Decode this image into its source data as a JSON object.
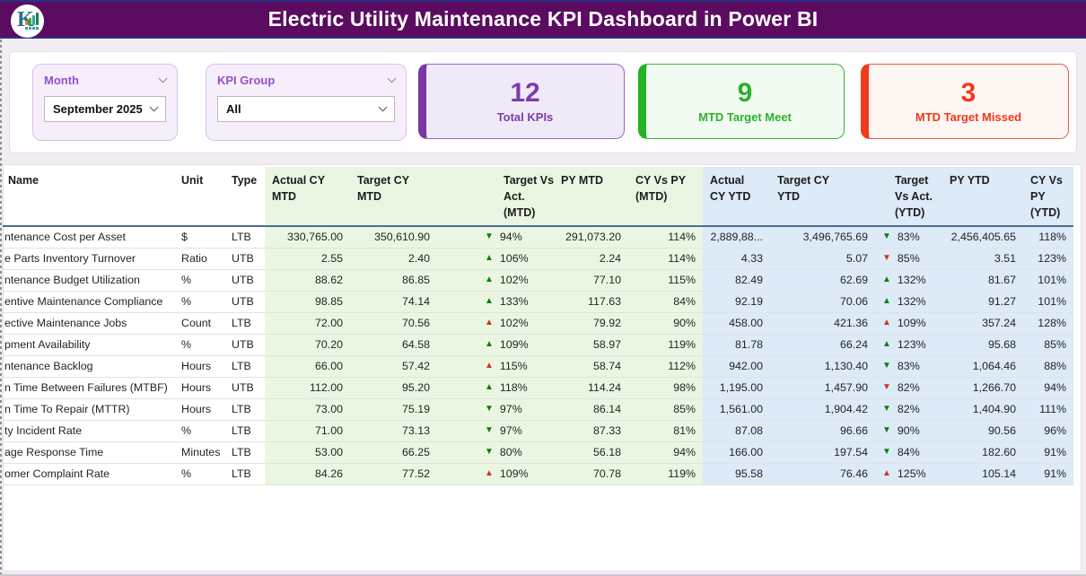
{
  "banner": {
    "title": "Electric Utility Maintenance KPI Dashboard in Power BI",
    "logo_text": "K"
  },
  "filters": {
    "month": {
      "label": "Month",
      "value": "September 2025"
    },
    "kpi_group": {
      "label": "KPI Group",
      "value": "All"
    }
  },
  "cards": {
    "total": {
      "value": "12",
      "label": "Total KPIs"
    },
    "meet": {
      "value": "9",
      "label": "MTD Target Meet"
    },
    "missed": {
      "value": "3",
      "label": "MTD Target Missed"
    }
  },
  "colors": {
    "banner": "#5B0C61",
    "card_purple": "#7B3CAA",
    "card_green": "#2BB22B",
    "card_red": "#F0391C",
    "band_green": "#EBF6E2",
    "band_blue": "#DDEAF8",
    "delta_good": "#0A7F0A",
    "delta_bad": "#C93620"
  },
  "table": {
    "icons": {
      "up_triangle": "▲",
      "down_triangle": "▼"
    },
    "columns": {
      "name": "Name",
      "unit": "Unit",
      "type": "Type",
      "actual_cy_mtd": "Actual CY\nMTD",
      "target_cy_mtd": "Target CY\nMTD",
      "tva_mtd": "Target Vs\nAct.\n(MTD)",
      "py_mtd": "PY MTD",
      "cy_vs_py_mtd": "CY Vs PY\n(MTD)",
      "actual_cy_ytd": "Actual\nCY YTD",
      "target_cy_ytd": "Target CY\nYTD",
      "tva_ytd": "Target\nVs Act.\n(YTD)",
      "py_ytd": "PY YTD",
      "cy_vs_py_ytd": "CY Vs\nPY\n(YTD)"
    },
    "rows": [
      {
        "name": "ntenance Cost per Asset",
        "unit": "$",
        "type": "LTB",
        "actual_cy_mtd": "330,765.00",
        "target_cy_mtd": "350,610.90",
        "tva_mtd_dir": "down",
        "tva_mtd_good": true,
        "tva_mtd_pct": "94%",
        "py_mtd": "291,073.20",
        "cy_vs_py_mtd": "114%",
        "actual_cy_ytd": "2,889,88...",
        "target_cy_ytd": "3,496,765.69",
        "tva_ytd_dir": "down",
        "tva_ytd_good": true,
        "tva_ytd_pct": "83%",
        "py_ytd": "2,456,405.65",
        "cy_vs_py_ytd": "118%"
      },
      {
        "name": "e Parts Inventory Turnover",
        "unit": "Ratio",
        "type": "UTB",
        "actual_cy_mtd": "2.55",
        "target_cy_mtd": "2.40",
        "tva_mtd_dir": "up",
        "tva_mtd_good": true,
        "tva_mtd_pct": "106%",
        "py_mtd": "2.24",
        "cy_vs_py_mtd": "114%",
        "actual_cy_ytd": "4.33",
        "target_cy_ytd": "5.07",
        "tva_ytd_dir": "down",
        "tva_ytd_good": false,
        "tva_ytd_pct": "85%",
        "py_ytd": "3.51",
        "cy_vs_py_ytd": "123%"
      },
      {
        "name": "ntenance Budget Utilization",
        "unit": "%",
        "type": "UTB",
        "actual_cy_mtd": "88.62",
        "target_cy_mtd": "86.85",
        "tva_mtd_dir": "up",
        "tva_mtd_good": true,
        "tva_mtd_pct": "102%",
        "py_mtd": "77.10",
        "cy_vs_py_mtd": "115%",
        "actual_cy_ytd": "82.49",
        "target_cy_ytd": "62.69",
        "tva_ytd_dir": "up",
        "tva_ytd_good": true,
        "tva_ytd_pct": "132%",
        "py_ytd": "81.67",
        "cy_vs_py_ytd": "101%"
      },
      {
        "name": "entive Maintenance Compliance",
        "unit": "%",
        "type": "UTB",
        "actual_cy_mtd": "98.85",
        "target_cy_mtd": "74.14",
        "tva_mtd_dir": "up",
        "tva_mtd_good": true,
        "tva_mtd_pct": "133%",
        "py_mtd": "117.63",
        "cy_vs_py_mtd": "84%",
        "actual_cy_ytd": "92.19",
        "target_cy_ytd": "70.06",
        "tva_ytd_dir": "up",
        "tva_ytd_good": true,
        "tva_ytd_pct": "132%",
        "py_ytd": "91.27",
        "cy_vs_py_ytd": "101%"
      },
      {
        "name": "ective Maintenance Jobs",
        "unit": "Count",
        "type": "LTB",
        "actual_cy_mtd": "72.00",
        "target_cy_mtd": "70.56",
        "tva_mtd_dir": "up",
        "tva_mtd_good": false,
        "tva_mtd_pct": "102%",
        "py_mtd": "79.92",
        "cy_vs_py_mtd": "90%",
        "actual_cy_ytd": "458.00",
        "target_cy_ytd": "421.36",
        "tva_ytd_dir": "up",
        "tva_ytd_good": false,
        "tva_ytd_pct": "109%",
        "py_ytd": "357.24",
        "cy_vs_py_ytd": "128%"
      },
      {
        "name": "pment Availability",
        "unit": "%",
        "type": "UTB",
        "actual_cy_mtd": "70.20",
        "target_cy_mtd": "64.58",
        "tva_mtd_dir": "up",
        "tva_mtd_good": true,
        "tva_mtd_pct": "109%",
        "py_mtd": "58.97",
        "cy_vs_py_mtd": "119%",
        "actual_cy_ytd": "81.78",
        "target_cy_ytd": "66.24",
        "tva_ytd_dir": "up",
        "tva_ytd_good": true,
        "tva_ytd_pct": "123%",
        "py_ytd": "95.68",
        "cy_vs_py_ytd": "85%"
      },
      {
        "name": "ntenance Backlog",
        "unit": "Hours",
        "type": "LTB",
        "actual_cy_mtd": "66.00",
        "target_cy_mtd": "57.42",
        "tva_mtd_dir": "up",
        "tva_mtd_good": false,
        "tva_mtd_pct": "115%",
        "py_mtd": "58.74",
        "cy_vs_py_mtd": "112%",
        "actual_cy_ytd": "942.00",
        "target_cy_ytd": "1,130.40",
        "tva_ytd_dir": "down",
        "tva_ytd_good": true,
        "tva_ytd_pct": "83%",
        "py_ytd": "1,064.46",
        "cy_vs_py_ytd": "88%"
      },
      {
        "name": "n Time Between Failures (MTBF)",
        "unit": "Hours",
        "type": "UTB",
        "actual_cy_mtd": "112.00",
        "target_cy_mtd": "95.20",
        "tva_mtd_dir": "up",
        "tva_mtd_good": true,
        "tva_mtd_pct": "118%",
        "py_mtd": "114.24",
        "cy_vs_py_mtd": "98%",
        "actual_cy_ytd": "1,195.00",
        "target_cy_ytd": "1,457.90",
        "tva_ytd_dir": "down",
        "tva_ytd_good": false,
        "tva_ytd_pct": "82%",
        "py_ytd": "1,266.70",
        "cy_vs_py_ytd": "94%"
      },
      {
        "name": "n Time To Repair (MTTR)",
        "unit": "Hours",
        "type": "LTB",
        "actual_cy_mtd": "73.00",
        "target_cy_mtd": "75.19",
        "tva_mtd_dir": "down",
        "tva_mtd_good": true,
        "tva_mtd_pct": "97%",
        "py_mtd": "86.14",
        "cy_vs_py_mtd": "85%",
        "actual_cy_ytd": "1,561.00",
        "target_cy_ytd": "1,904.42",
        "tva_ytd_dir": "down",
        "tva_ytd_good": true,
        "tva_ytd_pct": "82%",
        "py_ytd": "1,404.90",
        "cy_vs_py_ytd": "111%"
      },
      {
        "name": "ty Incident Rate",
        "unit": "%",
        "type": "LTB",
        "actual_cy_mtd": "71.00",
        "target_cy_mtd": "73.13",
        "tva_mtd_dir": "down",
        "tva_mtd_good": true,
        "tva_mtd_pct": "97%",
        "py_mtd": "87.33",
        "cy_vs_py_mtd": "81%",
        "actual_cy_ytd": "87.08",
        "target_cy_ytd": "96.66",
        "tva_ytd_dir": "down",
        "tva_ytd_good": true,
        "tva_ytd_pct": "90%",
        "py_ytd": "90.56",
        "cy_vs_py_ytd": "96%"
      },
      {
        "name": "age Response Time",
        "unit": "Minutes",
        "type": "LTB",
        "actual_cy_mtd": "53.00",
        "target_cy_mtd": "66.25",
        "tva_mtd_dir": "down",
        "tva_mtd_good": true,
        "tva_mtd_pct": "80%",
        "py_mtd": "56.18",
        "cy_vs_py_mtd": "94%",
        "actual_cy_ytd": "166.00",
        "target_cy_ytd": "197.54",
        "tva_ytd_dir": "down",
        "tva_ytd_good": true,
        "tva_ytd_pct": "84%",
        "py_ytd": "182.60",
        "cy_vs_py_ytd": "91%"
      },
      {
        "name": "omer Complaint Rate",
        "unit": "%",
        "type": "LTB",
        "actual_cy_mtd": "84.26",
        "target_cy_mtd": "77.52",
        "tva_mtd_dir": "up",
        "tva_mtd_good": false,
        "tva_mtd_pct": "109%",
        "py_mtd": "70.78",
        "cy_vs_py_mtd": "119%",
        "actual_cy_ytd": "95.58",
        "target_cy_ytd": "76.46",
        "tva_ytd_dir": "up",
        "tva_ytd_good": false,
        "tva_ytd_pct": "125%",
        "py_ytd": "105.14",
        "cy_vs_py_ytd": "91%"
      }
    ]
  }
}
